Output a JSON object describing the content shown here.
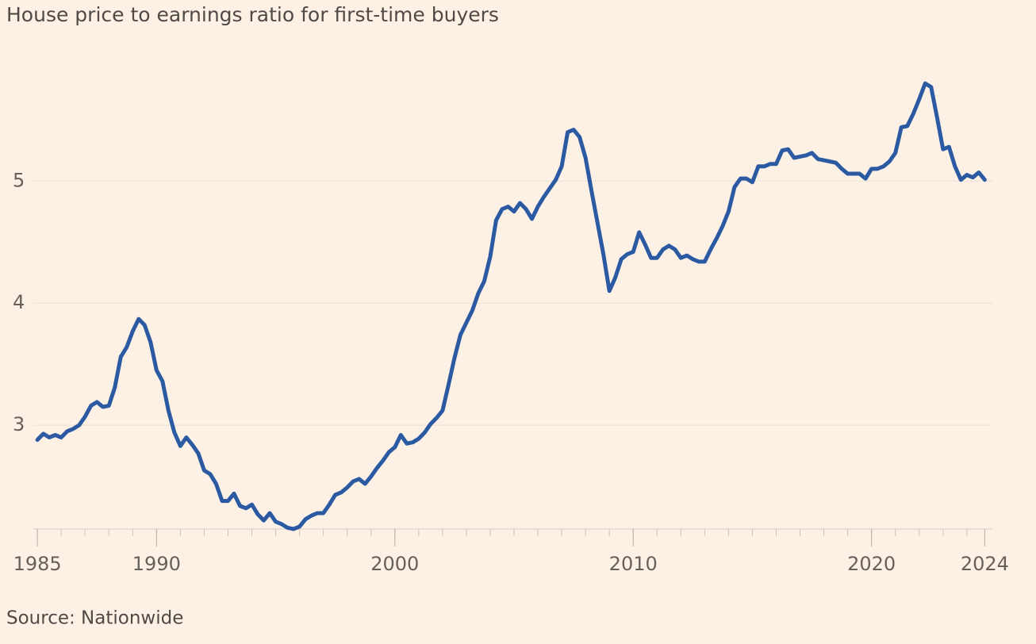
{
  "chart_data": {
    "type": "line",
    "title": "House price to earnings ratio for first-time buyers",
    "source": "Source: Nationwide",
    "color": "#2b5aa3",
    "grid": true,
    "xlim": [
      1984.83,
      2025.07
    ],
    "ylim": [
      2.15,
      5.95
    ],
    "yticks": [
      3,
      4,
      5
    ],
    "xticks": [
      1985,
      1990,
      2000,
      2010,
      2020,
      {
        "value": 2024.75,
        "label": "2024"
      }
    ],
    "x_minor_ticks": [
      1985,
      1986,
      1987,
      1988,
      1989,
      1990,
      1991,
      1992,
      1993,
      1994,
      1995,
      1996,
      1997,
      1998,
      1999,
      2000,
      2001,
      2002,
      2003,
      2004,
      2005,
      2006,
      2007,
      2008,
      2009,
      2010,
      2011,
      2012,
      2013,
      2014,
      2015,
      2016,
      2017,
      2018,
      2019,
      2020,
      2021,
      2022,
      2023,
      2024
    ],
    "x": [
      1985,
      1985.25,
      1985.5,
      1985.75,
      1986,
      1986.25,
      1986.5,
      1986.75,
      1987,
      1987.25,
      1987.5,
      1987.75,
      1988,
      1988.25,
      1988.5,
      1988.75,
      1989,
      1989.25,
      1989.5,
      1989.75,
      1990,
      1990.25,
      1990.5,
      1990.75,
      1991,
      1991.25,
      1991.5,
      1991.75,
      1992,
      1992.25,
      1992.5,
      1992.75,
      1993,
      1993.25,
      1993.5,
      1993.75,
      1994,
      1994.25,
      1994.5,
      1994.75,
      1995,
      1995.25,
      1995.5,
      1995.75,
      1996,
      1996.25,
      1996.5,
      1996.75,
      1997,
      1997.25,
      1997.5,
      1997.75,
      1998,
      1998.25,
      1998.5,
      1998.75,
      1999,
      1999.25,
      1999.5,
      1999.75,
      2000,
      2000.25,
      2000.5,
      2000.75,
      2001,
      2001.25,
      2001.5,
      2001.75,
      2002,
      2002.25,
      2002.5,
      2002.75,
      2003,
      2003.25,
      2003.5,
      2003.75,
      2004,
      2004.25,
      2004.5,
      2004.75,
      2005,
      2005.25,
      2005.5,
      2005.75,
      2006,
      2006.25,
      2006.5,
      2006.75,
      2007,
      2007.25,
      2007.5,
      2007.75,
      2008,
      2008.25,
      2008.5,
      2008.75,
      2009,
      2009.25,
      2009.5,
      2009.75,
      2010,
      2010.25,
      2010.5,
      2010.75,
      2011,
      2011.25,
      2011.5,
      2011.75,
      2012,
      2012.25,
      2012.5,
      2012.75,
      2013,
      2013.25,
      2013.5,
      2013.75,
      2014,
      2014.25,
      2014.5,
      2014.75,
      2015,
      2015.25,
      2015.5,
      2015.75,
      2016,
      2016.25,
      2016.5,
      2016.75,
      2017,
      2017.25,
      2017.5,
      2017.75,
      2018,
      2018.25,
      2018.5,
      2018.75,
      2019,
      2019.25,
      2019.5,
      2019.75,
      2020,
      2020.25,
      2020.5,
      2020.75,
      2021,
      2021.25,
      2021.5,
      2021.75,
      2022,
      2022.25,
      2022.5,
      2022.75,
      2023,
      2023.25,
      2023.5,
      2023.75,
      2024,
      2024.25,
      2024.5,
      2024.75
    ],
    "values": [
      2.88,
      2.93,
      2.9,
      2.92,
      2.9,
      2.95,
      2.97,
      3.0,
      3.07,
      3.16,
      3.19,
      3.15,
      3.16,
      3.31,
      3.56,
      3.64,
      3.77,
      3.87,
      3.82,
      3.68,
      3.45,
      3.36,
      3.12,
      2.94,
      2.83,
      2.9,
      2.84,
      2.77,
      2.63,
      2.6,
      2.52,
      2.38,
      2.38,
      2.44,
      2.34,
      2.32,
      2.35,
      2.27,
      2.22,
      2.28,
      2.21,
      2.19,
      2.16,
      2.15,
      2.17,
      2.23,
      2.26,
      2.28,
      2.28,
      2.35,
      2.43,
      2.45,
      2.49,
      2.54,
      2.56,
      2.52,
      2.58,
      2.65,
      2.71,
      2.78,
      2.82,
      2.92,
      2.85,
      2.86,
      2.89,
      2.94,
      3.01,
      3.06,
      3.12,
      3.33,
      3.55,
      3.74,
      3.84,
      3.94,
      4.08,
      4.18,
      4.38,
      4.68,
      4.77,
      4.79,
      4.75,
      4.82,
      4.77,
      4.69,
      4.79,
      4.87,
      4.94,
      5.01,
      5.12,
      5.4,
      5.42,
      5.36,
      5.19,
      4.92,
      4.66,
      4.4,
      4.1,
      4.21,
      4.36,
      4.4,
      4.42,
      4.58,
      4.48,
      4.37,
      4.37,
      4.44,
      4.47,
      4.44,
      4.37,
      4.39,
      4.36,
      4.34,
      4.34,
      4.44,
      4.53,
      4.63,
      4.75,
      4.95,
      5.02,
      5.02,
      4.99,
      5.12,
      5.12,
      5.14,
      5.14,
      5.25,
      5.26,
      5.19,
      5.2,
      5.21,
      5.23,
      5.18,
      5.17,
      5.16,
      5.15,
      5.1,
      5.06,
      5.06,
      5.06,
      5.02,
      5.1,
      5.1,
      5.12,
      5.16,
      5.23,
      5.44,
      5.45,
      5.55,
      5.67,
      5.8,
      5.77,
      5.52,
      5.26,
      5.28,
      5.12,
      5.01,
      5.05,
      5.03,
      5.07,
      5.01
    ]
  }
}
